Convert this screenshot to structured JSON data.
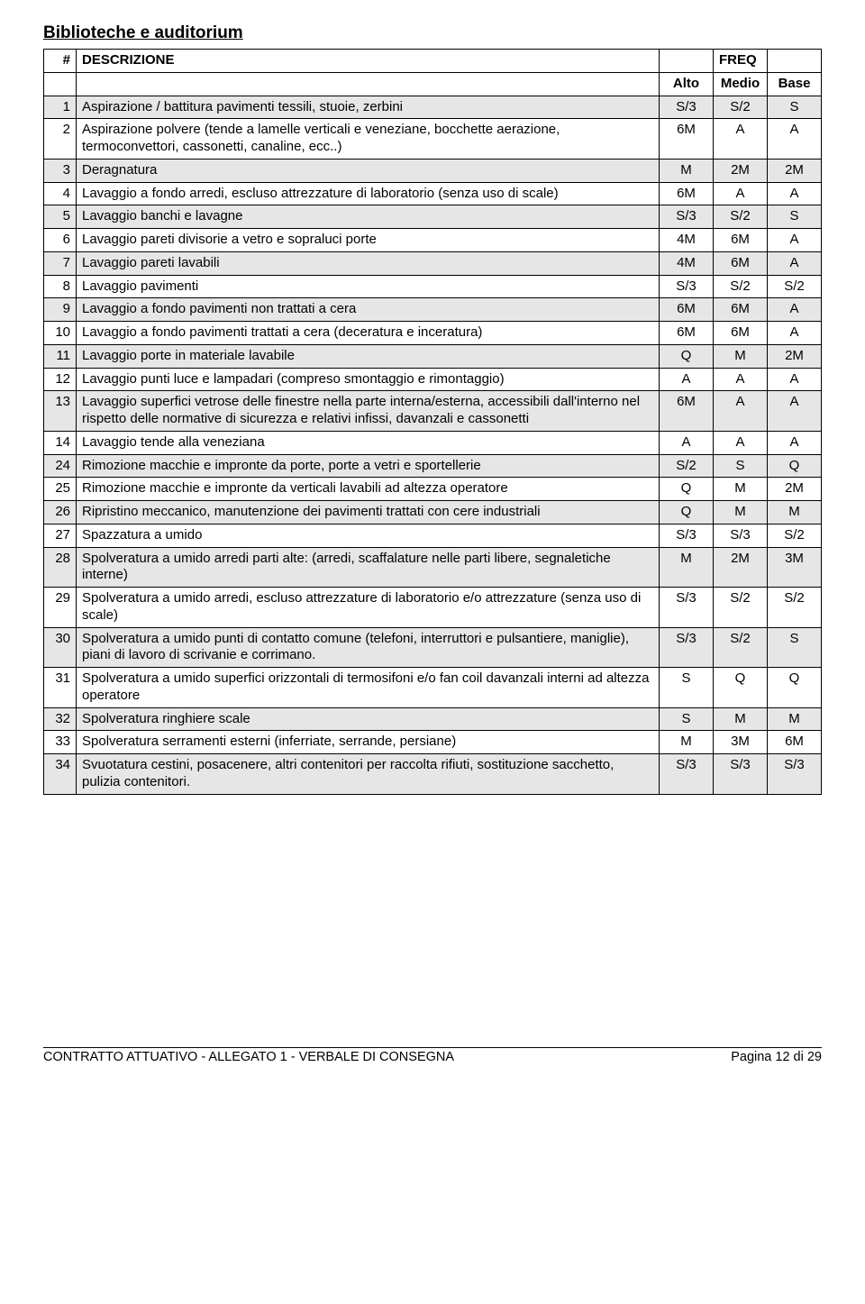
{
  "title": "Biblioteche e auditorium",
  "colors": {
    "shaded_bg": "#e6e6e6",
    "border": "#000000",
    "text": "#000000",
    "background": "#ffffff"
  },
  "table": {
    "header": {
      "num": "#",
      "desc": "DESCRIZIONE",
      "freq": "FREQ"
    },
    "subheader": {
      "alto": "Alto",
      "medio": "Medio",
      "base": "Base"
    },
    "rows": [
      {
        "n": "1",
        "d": "Aspirazione / battitura pavimenti tessili, stuoie, zerbini",
        "a": "S/3",
        "m": "S/2",
        "b": "S"
      },
      {
        "n": "2",
        "d": "Aspirazione polvere (tende a lamelle verticali e veneziane, bocchette aerazione, termoconvettori, cassonetti, canaline, ecc..)",
        "a": "6M",
        "m": "A",
        "b": "A"
      },
      {
        "n": "3",
        "d": "Deragnatura",
        "a": "M",
        "m": "2M",
        "b": "2M"
      },
      {
        "n": "4",
        "d": "Lavaggio a fondo arredi, escluso attrezzature di laboratorio (senza uso di scale)",
        "a": "6M",
        "m": "A",
        "b": "A"
      },
      {
        "n": "5",
        "d": "Lavaggio banchi e lavagne",
        "a": "S/3",
        "m": "S/2",
        "b": "S"
      },
      {
        "n": "6",
        "d": "Lavaggio pareti divisorie a vetro e sopraluci porte",
        "a": "4M",
        "m": "6M",
        "b": "A"
      },
      {
        "n": "7",
        "d": "Lavaggio pareti lavabili",
        "a": "4M",
        "m": "6M",
        "b": "A"
      },
      {
        "n": "8",
        "d": "Lavaggio pavimenti",
        "a": "S/3",
        "m": "S/2",
        "b": "S/2"
      },
      {
        "n": "9",
        "d": "Lavaggio a fondo pavimenti non trattati a cera",
        "a": "6M",
        "m": "6M",
        "b": "A"
      },
      {
        "n": "10",
        "d": "Lavaggio a fondo pavimenti trattati a cera (deceratura e inceratura)",
        "a": "6M",
        "m": "6M",
        "b": "A"
      },
      {
        "n": "11",
        "d": "Lavaggio porte in materiale lavabile",
        "a": "Q",
        "m": "M",
        "b": "2M"
      },
      {
        "n": "12",
        "d": "Lavaggio punti luce e lampadari (compreso smontaggio e rimontaggio)",
        "a": "A",
        "m": "A",
        "b": "A"
      },
      {
        "n": "13",
        "d": "Lavaggio superfici vetrose delle finestre nella parte interna/esterna, accessibili dall'interno nel rispetto delle normative di sicurezza e relativi infissi, davanzali e cassonetti",
        "a": "6M",
        "m": "A",
        "b": "A"
      },
      {
        "n": "14",
        "d": "Lavaggio tende alla veneziana",
        "a": "A",
        "m": "A",
        "b": "A"
      },
      {
        "n": "24",
        "d": "Rimozione macchie e impronte da porte, porte a vetri e sportellerie",
        "a": "S/2",
        "m": "S",
        "b": "Q"
      },
      {
        "n": "25",
        "d": "Rimozione macchie e impronte da verticali lavabili ad altezza operatore",
        "a": "Q",
        "m": "M",
        "b": "2M"
      },
      {
        "n": "26",
        "d": "Ripristino meccanico, manutenzione dei pavimenti trattati con cere industriali",
        "a": "Q",
        "m": "M",
        "b": "M"
      },
      {
        "n": "27",
        "d": "Spazzatura a umido",
        "a": "S/3",
        "m": "S/3",
        "b": "S/2"
      },
      {
        "n": "28",
        "d": "Spolveratura a umido arredi parti alte: (arredi, scaffalature nelle parti libere, segnaletiche interne)",
        "a": "M",
        "m": "2M",
        "b": "3M"
      },
      {
        "n": "29",
        "d": "Spolveratura a umido arredi, escluso attrezzature di laboratorio e/o attrezzature (senza uso di scale)",
        "a": "S/3",
        "m": "S/2",
        "b": "S/2"
      },
      {
        "n": "30",
        "d": "Spolveratura a umido punti di contatto comune (telefoni, interruttori e pulsantiere, maniglie), piani di lavoro di scrivanie e corrimano.",
        "a": "S/3",
        "m": "S/2",
        "b": "S"
      },
      {
        "n": "31",
        "d": "Spolveratura a umido superfici orizzontali di termosifoni e/o fan coil davanzali interni ad altezza operatore",
        "a": "S",
        "m": "Q",
        "b": "Q"
      },
      {
        "n": "32",
        "d": "Spolveratura ringhiere scale",
        "a": "S",
        "m": "M",
        "b": "M"
      },
      {
        "n": "33",
        "d": "Spolveratura serramenti esterni (inferriate, serrande, persiane)",
        "a": "M",
        "m": "3M",
        "b": "6M"
      },
      {
        "n": "34",
        "d": "Svuotatura cestini, posacenere, altri contenitori per raccolta rifiuti, sostituzione sacchetto, pulizia contenitori.",
        "a": "S/3",
        "m": "S/3",
        "b": "S/3"
      }
    ]
  },
  "footer": {
    "left": "CONTRATTO ATTUATIVO - ALLEGATO 1 - VERBALE DI CONSEGNA",
    "right": "Pagina 12 di 29"
  }
}
